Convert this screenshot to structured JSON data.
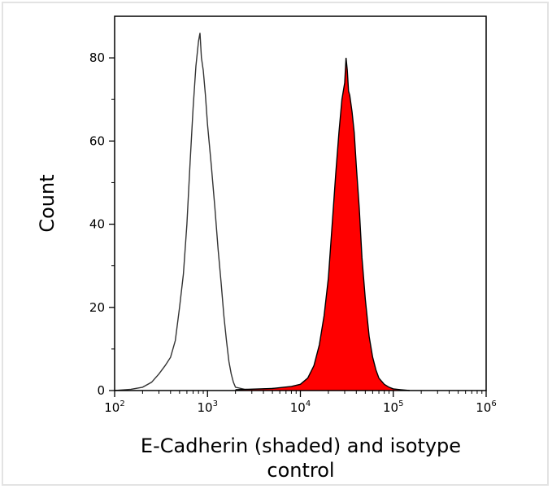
{
  "chart_data": {
    "type": "area",
    "x_scale": "log",
    "xlim": [
      100,
      1000000
    ],
    "ylim": [
      0,
      90
    ],
    "xlabel_lines": [
      "E-Cadherin (shaded) and isotype",
      "control"
    ],
    "ylabel": "Count",
    "x_ticks": [
      {
        "base": "10",
        "exp": "2",
        "value": 100
      },
      {
        "base": "10",
        "exp": "3",
        "value": 1000
      },
      {
        "base": "10",
        "exp": "4",
        "value": 10000
      },
      {
        "base": "10",
        "exp": "5",
        "value": 100000
      },
      {
        "base": "10",
        "exp": "6",
        "value": 1000000
      }
    ],
    "y_ticks": [
      {
        "label": "0",
        "value": 0
      },
      {
        "label": "20",
        "value": 20
      },
      {
        "label": "40",
        "value": 40
      },
      {
        "label": "60",
        "value": 60
      },
      {
        "label": "80",
        "value": 80
      }
    ],
    "grid": false,
    "series": [
      {
        "style": "outline",
        "color": "#333333",
        "x": [
          100,
          150,
          200,
          250,
          300,
          350,
          400,
          450,
          500,
          550,
          600,
          650,
          700,
          750,
          800,
          830,
          860,
          900,
          950,
          1000,
          1100,
          1200,
          1300,
          1400,
          1500,
          1600,
          1700,
          1800,
          1900,
          2000,
          2500,
          3000,
          5000,
          10000,
          20000,
          50000,
          100000
        ],
        "y": [
          0,
          0.3,
          0.8,
          2,
          4,
          6,
          8,
          12,
          20,
          28,
          40,
          55,
          68,
          78,
          84,
          86,
          80,
          77,
          71,
          64,
          54,
          44,
          34,
          26,
          18,
          12,
          7,
          4,
          2,
          0.8,
          0.3,
          0.2,
          0.5,
          0.6,
          0.5,
          0.3,
          0.1
        ]
      },
      {
        "style": "filled",
        "color": "#ff0000",
        "outline_color": "#000000",
        "x": [
          2000,
          5000,
          8000,
          10000,
          12000,
          14000,
          16000,
          18000,
          20000,
          22000,
          24000,
          26000,
          28000,
          30000,
          31000,
          32000,
          33000,
          34000,
          36000,
          38000,
          40000,
          43000,
          46000,
          50000,
          55000,
          60000,
          65000,
          70000,
          80000,
          90000,
          100000,
          120000,
          150000
        ],
        "y": [
          0.2,
          0.5,
          1,
          1.5,
          3,
          6,
          11,
          18,
          27,
          40,
          52,
          62,
          70,
          74,
          80,
          77,
          72,
          71,
          67,
          62,
          54,
          44,
          32,
          22,
          13,
          8,
          5,
          3,
          1.5,
          0.8,
          0.4,
          0.2,
          0
        ]
      }
    ]
  }
}
